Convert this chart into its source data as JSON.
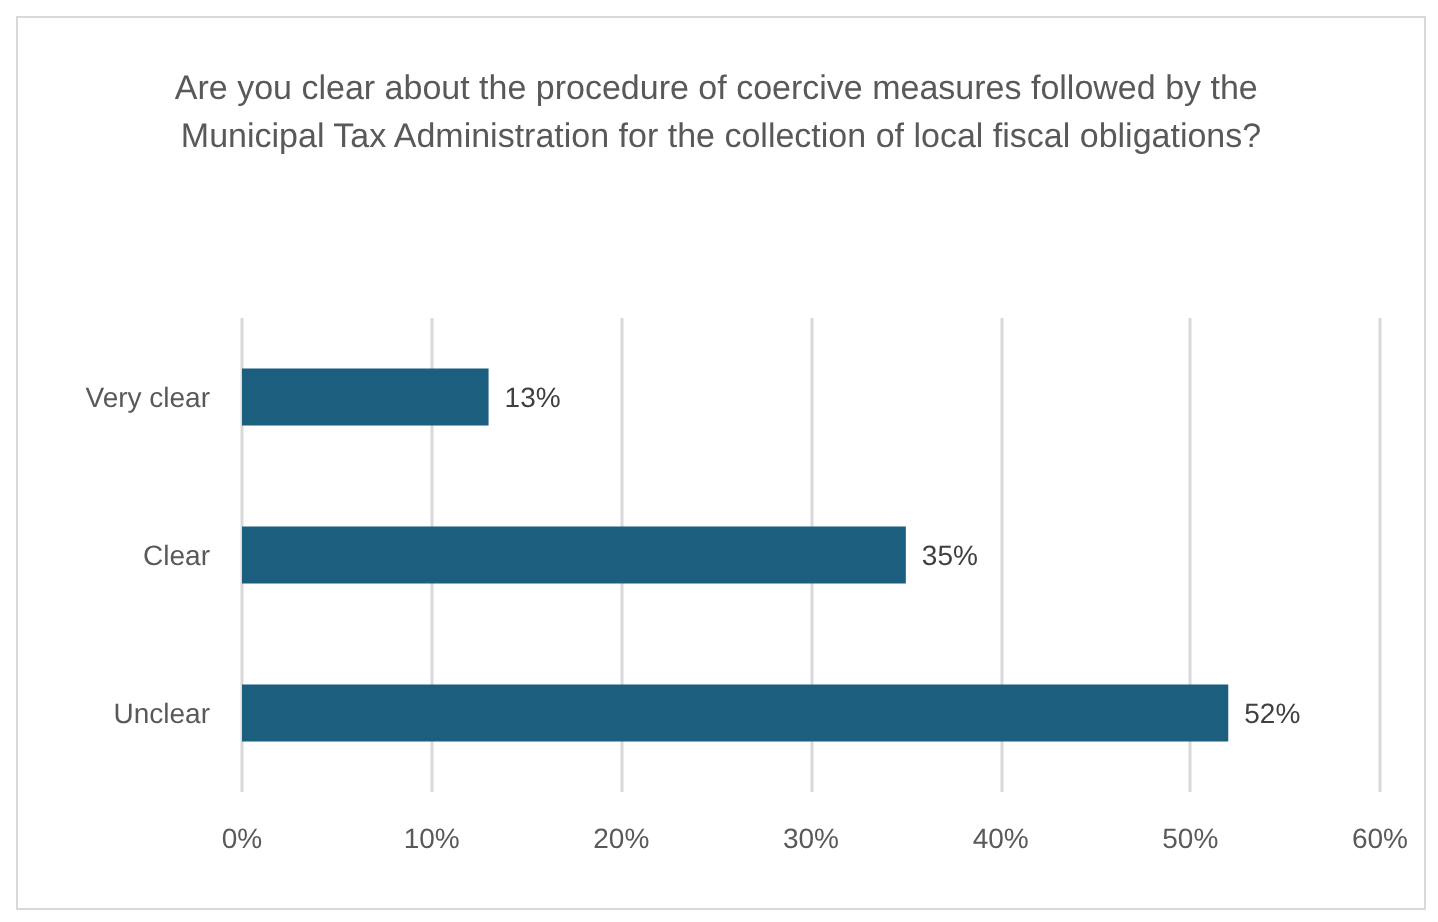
{
  "chart_data": {
    "type": "bar",
    "orientation": "horizontal",
    "title": "Are you clear about the procedure of coercive measures followed by the Municipal Tax Administration for the collection of local fiscal obligations?",
    "categories": [
      "Very clear",
      "Clear",
      "Unclear"
    ],
    "values": [
      13,
      35,
      52
    ],
    "value_labels": [
      "13%",
      "35%",
      "52%"
    ],
    "color": "#1b5e7e",
    "xlim": [
      0,
      60
    ],
    "xticks": [
      {
        "value": 0,
        "label": "0%"
      },
      {
        "value": 10,
        "label": "10%"
      },
      {
        "value": 20,
        "label": "20%"
      },
      {
        "value": 30,
        "label": "30%"
      },
      {
        "value": 40,
        "label": "40%"
      },
      {
        "value": 50,
        "label": "50%"
      },
      {
        "value": 60,
        "label": "60%"
      }
    ],
    "grid": "x"
  }
}
